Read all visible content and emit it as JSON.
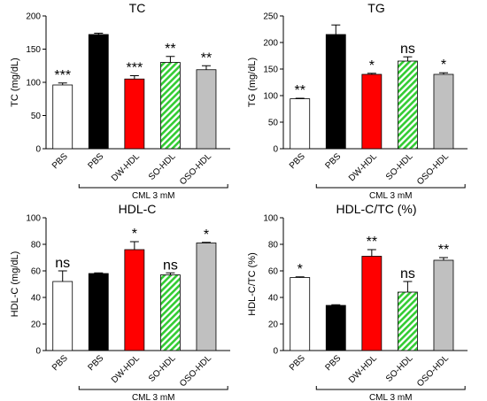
{
  "chart_data": [
    {
      "id": "tc",
      "type": "bar",
      "title": "TC",
      "ylabel": "TC (mg/dL)",
      "ylim": [
        0,
        200
      ],
      "yticks": [
        0,
        50,
        100,
        150,
        200
      ],
      "categories": [
        "PBS",
        "PBS",
        "DW-HDL",
        "SO-HDL",
        "OSO-HDL"
      ],
      "values": [
        96,
        172,
        105,
        130,
        119
      ],
      "errors": [
        3,
        2,
        5,
        9,
        6
      ],
      "significance": [
        "***",
        "",
        "***",
        "**",
        "**"
      ],
      "bar_styles": [
        "white",
        "black",
        "red",
        "green-hatch",
        "gray"
      ],
      "bracket_label": "CML 3 mM"
    },
    {
      "id": "tg",
      "type": "bar",
      "title": "TG",
      "ylabel": "TG (mg/dL)",
      "ylim": [
        0,
        250
      ],
      "yticks": [
        0,
        50,
        100,
        150,
        200,
        250
      ],
      "categories": [
        "PBS",
        "PBS",
        "DW-HDL",
        "SO-HDL",
        "OSO-HDL"
      ],
      "values": [
        94,
        215,
        140,
        165,
        140
      ],
      "errors": [
        1,
        18,
        2,
        8,
        3
      ],
      "significance": [
        "**",
        "",
        "*",
        "ns",
        "*"
      ],
      "bar_styles": [
        "white",
        "black",
        "red",
        "green-hatch",
        "gray"
      ],
      "bracket_label": "CML 3 mM"
    },
    {
      "id": "hdlc",
      "type": "bar",
      "title": "HDL-C",
      "ylabel": "HDL-C (mg/dL)",
      "ylim": [
        0,
        100
      ],
      "yticks": [
        0,
        20,
        40,
        60,
        80,
        100
      ],
      "categories": [
        "PBS",
        "PBS",
        "DW-HDL",
        "SO-HDL",
        "OSO-HDL"
      ],
      "values": [
        52,
        58,
        76,
        57,
        81
      ],
      "errors": [
        8,
        0.5,
        6,
        1.5,
        0.5
      ],
      "significance": [
        "ns",
        "",
        "*",
        "ns",
        "*"
      ],
      "bar_styles": [
        "white",
        "black",
        "red",
        "green-hatch",
        "gray"
      ],
      "bracket_label": "CML 3 mM"
    },
    {
      "id": "ratio",
      "type": "bar",
      "title": "HDL-C/TC (%)",
      "ylabel": "HDL-C/TC (%)",
      "ylim": [
        0,
        100
      ],
      "yticks": [
        0,
        20,
        40,
        60,
        80,
        100
      ],
      "categories": [
        "PBS",
        "PBS",
        "DW-HDL",
        "SO-HDL",
        "OSO-HDL"
      ],
      "values": [
        55,
        34,
        71,
        44,
        68
      ],
      "errors": [
        0.5,
        0.5,
        5,
        8,
        2
      ],
      "significance": [
        "*",
        "",
        "**",
        "ns",
        "**"
      ],
      "bar_styles": [
        "white",
        "black",
        "red",
        "green-hatch",
        "gray"
      ],
      "bracket_label": "CML 3 mM"
    }
  ],
  "colors": {
    "white": "#ffffff",
    "black": "#000000",
    "red": "#ff0000",
    "green": "#33cc33",
    "gray": "#c0c0c0"
  }
}
